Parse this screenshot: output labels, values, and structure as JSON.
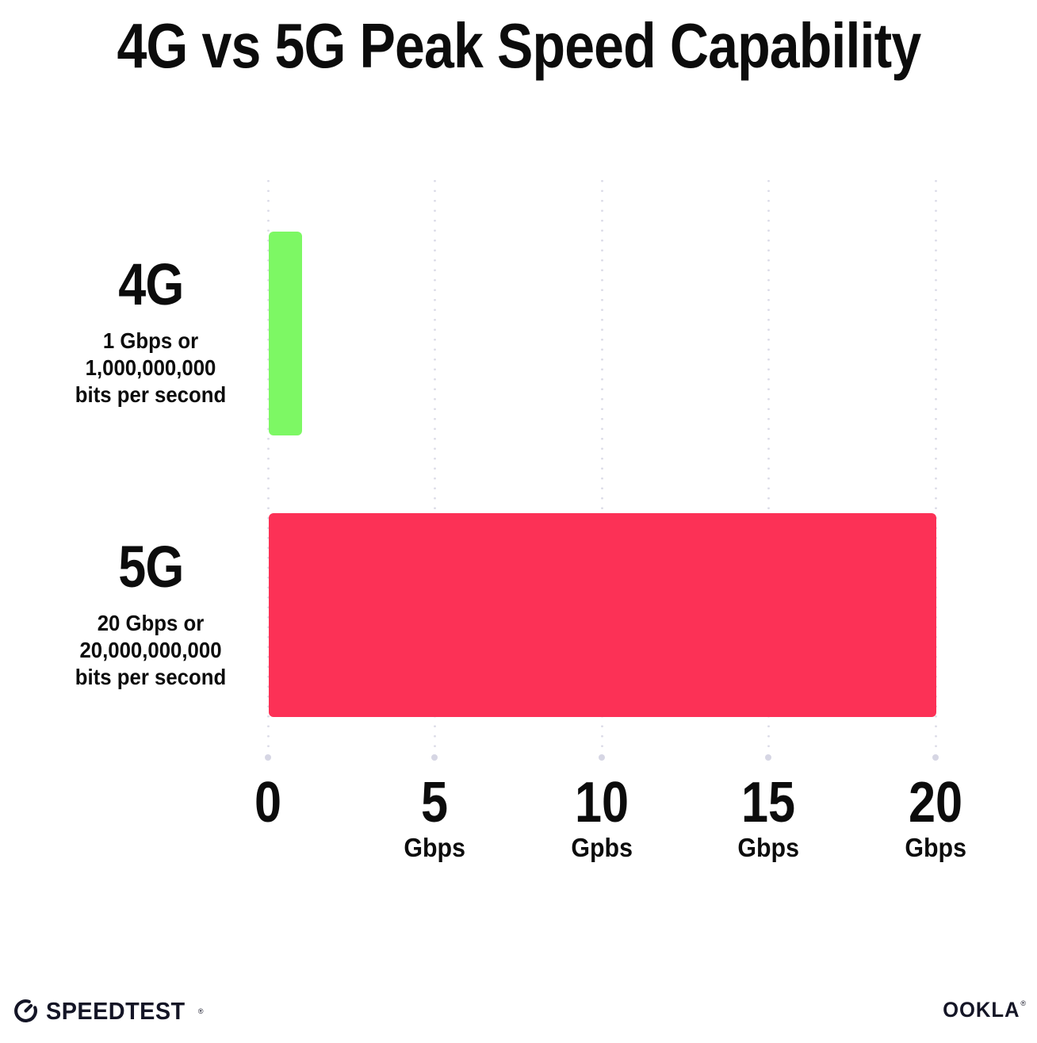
{
  "title": "4G vs 5G Peak Speed Capability",
  "chart_data": {
    "type": "bar",
    "orientation": "horizontal",
    "title": "4G vs 5G Peak Speed Capability",
    "categories": [
      "4G",
      "5G"
    ],
    "values": [
      1,
      20
    ],
    "value_unit": "Gbps",
    "xlim": [
      0,
      20
    ],
    "xlabel": "",
    "ylabel": "",
    "grid": "vertical dotted gridlines at 0, 5, 10, 15, 20 with end dots",
    "legend_position": "none",
    "bar_colors": [
      "#7df864",
      "#fc3156"
    ],
    "category_sublabels": [
      [
        "1 Gbps or",
        "1,000,000,000",
        "bits per second"
      ],
      [
        "20 Gbps or",
        "20,000,000,000",
        "bits per second"
      ]
    ],
    "x_ticks": [
      {
        "number": "0",
        "unit": ""
      },
      {
        "number": "5",
        "unit": "Gbps"
      },
      {
        "number": "10",
        "unit": "Gpbs"
      },
      {
        "number": "15",
        "unit": "Gbps"
      },
      {
        "number": "20",
        "unit": "Gbps"
      }
    ]
  },
  "rows": [
    {
      "name": "4G",
      "line1": "1 Gbps or",
      "line2": "1,000,000,000",
      "line3": "bits per second"
    },
    {
      "name": "5G",
      "line1": "20 Gbps or",
      "line2": "20,000,000,000",
      "line3": "bits per second"
    }
  ],
  "axis": {
    "ticks": [
      {
        "number": "0",
        "unit": ""
      },
      {
        "number": "5",
        "unit": "Gbps"
      },
      {
        "number": "10",
        "unit": "Gpbs"
      },
      {
        "number": "15",
        "unit": "Gbps"
      },
      {
        "number": "20",
        "unit": "Gbps"
      }
    ]
  },
  "footer": {
    "speedtest": "SPEEDTEST",
    "speedtest_reg": "®",
    "ookla": "OOKLA",
    "ookla_reg": "®"
  },
  "colors": {
    "bar_4g": "#7df864",
    "bar_5g": "#fc3156",
    "grid_dot": "#dcdce8",
    "text": "#0c0c0c",
    "logo": "#141526"
  }
}
